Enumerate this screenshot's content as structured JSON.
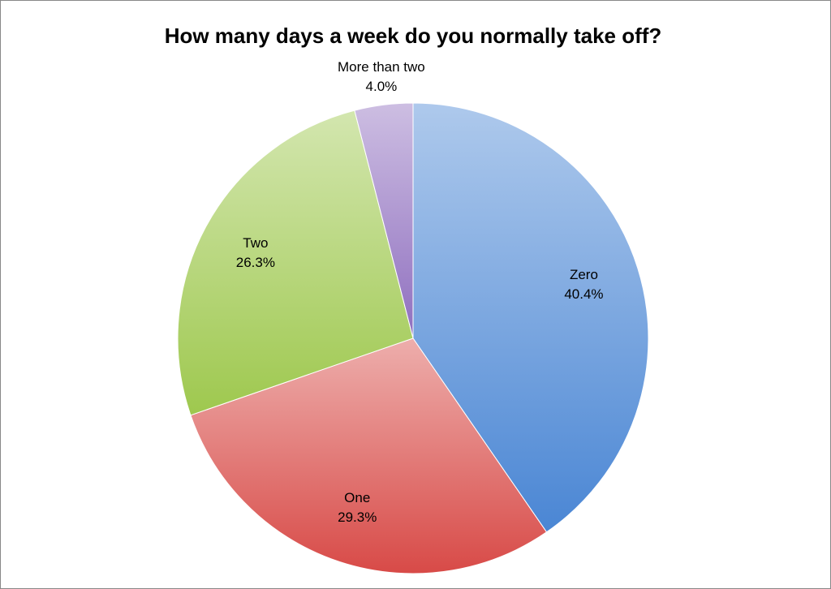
{
  "chart_data": {
    "type": "pie",
    "title": "How many days a week do you normally take off?",
    "categories": [
      "Zero",
      "One",
      "Two",
      "More than two"
    ],
    "values": [
      40.4,
      29.3,
      26.3,
      4.0
    ],
    "value_labels": [
      "40.4%",
      "29.3%",
      "26.3%",
      "4.0%"
    ],
    "colors": [
      "#4a86d4",
      "#d84a47",
      "#9ec84e",
      "#8f6fbf"
    ]
  }
}
